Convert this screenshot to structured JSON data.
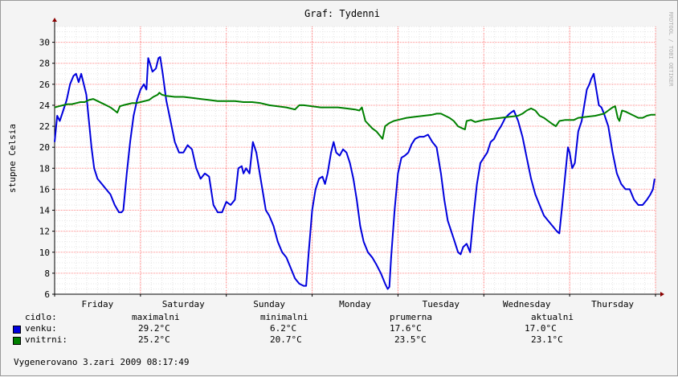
{
  "chart_data": {
    "type": "line",
    "title": "Graf: Tydenni",
    "ylabel": "stupne Celsia",
    "watermark": "RRDTOOL / TOBI OETIKER",
    "ylim": [
      6,
      31.5
    ],
    "yticks": [
      6,
      8,
      10,
      12,
      14,
      16,
      18,
      20,
      22,
      24,
      26,
      28,
      30
    ],
    "xlim": [
      0,
      7.0
    ],
    "xtick_labels": [
      {
        "x": 0.5,
        "label": "Friday"
      },
      {
        "x": 1.5,
        "label": "Saturday"
      },
      {
        "x": 2.5,
        "label": "Sunday"
      },
      {
        "x": 3.5,
        "label": "Monday"
      },
      {
        "x": 4.5,
        "label": "Tuesday"
      },
      {
        "x": 5.5,
        "label": "Wednesday"
      },
      {
        "x": 6.5,
        "label": "Thursday"
      }
    ],
    "grid": true,
    "series": [
      {
        "name": "venku",
        "color": "#0000dd",
        "points": [
          [
            0.0,
            20.5
          ],
          [
            0.03,
            23.0
          ],
          [
            0.06,
            22.5
          ],
          [
            0.1,
            23.5
          ],
          [
            0.14,
            24.5
          ],
          [
            0.18,
            26.0
          ],
          [
            0.22,
            26.8
          ],
          [
            0.25,
            27.0
          ],
          [
            0.28,
            26.2
          ],
          [
            0.31,
            27.0
          ],
          [
            0.34,
            26.0
          ],
          [
            0.37,
            25.0
          ],
          [
            0.4,
            22.5
          ],
          [
            0.43,
            20.0
          ],
          [
            0.46,
            18.0
          ],
          [
            0.5,
            17.0
          ],
          [
            0.55,
            16.5
          ],
          [
            0.6,
            16.0
          ],
          [
            0.65,
            15.5
          ],
          [
            0.7,
            14.5
          ],
          [
            0.75,
            13.8
          ],
          [
            0.78,
            13.8
          ],
          [
            0.8,
            14.0
          ],
          [
            0.84,
            17.5
          ],
          [
            0.88,
            20.5
          ],
          [
            0.92,
            23.0
          ],
          [
            0.96,
            24.5
          ],
          [
            1.0,
            25.5
          ],
          [
            1.04,
            26.0
          ],
          [
            1.07,
            25.5
          ],
          [
            1.09,
            28.5
          ],
          [
            1.11,
            28.0
          ],
          [
            1.14,
            27.2
          ],
          [
            1.18,
            27.5
          ],
          [
            1.21,
            28.5
          ],
          [
            1.23,
            28.6
          ],
          [
            1.26,
            27.0
          ],
          [
            1.3,
            24.5
          ],
          [
            1.35,
            22.5
          ],
          [
            1.4,
            20.5
          ],
          [
            1.45,
            19.5
          ],
          [
            1.5,
            19.5
          ],
          [
            1.55,
            20.2
          ],
          [
            1.6,
            19.8
          ],
          [
            1.65,
            18.0
          ],
          [
            1.7,
            17.0
          ],
          [
            1.75,
            17.5
          ],
          [
            1.8,
            17.2
          ],
          [
            1.85,
            14.5
          ],
          [
            1.9,
            13.8
          ],
          [
            1.95,
            13.8
          ],
          [
            2.0,
            14.8
          ],
          [
            2.05,
            14.5
          ],
          [
            2.1,
            15.0
          ],
          [
            2.14,
            18.0
          ],
          [
            2.18,
            18.2
          ],
          [
            2.2,
            17.5
          ],
          [
            2.23,
            18.0
          ],
          [
            2.27,
            17.5
          ],
          [
            2.31,
            20.5
          ],
          [
            2.35,
            19.5
          ],
          [
            2.38,
            18.0
          ],
          [
            2.42,
            16.0
          ],
          [
            2.46,
            14.0
          ],
          [
            2.5,
            13.5
          ],
          [
            2.55,
            12.5
          ],
          [
            2.6,
            11.0
          ],
          [
            2.65,
            10.0
          ],
          [
            2.7,
            9.5
          ],
          [
            2.75,
            8.5
          ],
          [
            2.8,
            7.5
          ],
          [
            2.85,
            7.0
          ],
          [
            2.9,
            6.8
          ],
          [
            2.93,
            6.8
          ],
          [
            2.96,
            10.0
          ],
          [
            3.0,
            14.0
          ],
          [
            3.04,
            16.0
          ],
          [
            3.08,
            17.0
          ],
          [
            3.12,
            17.2
          ],
          [
            3.15,
            16.5
          ],
          [
            3.18,
            17.5
          ],
          [
            3.22,
            19.5
          ],
          [
            3.25,
            20.5
          ],
          [
            3.28,
            19.5
          ],
          [
            3.32,
            19.2
          ],
          [
            3.36,
            19.8
          ],
          [
            3.4,
            19.5
          ],
          [
            3.44,
            18.5
          ],
          [
            3.48,
            17.0
          ],
          [
            3.52,
            15.0
          ],
          [
            3.56,
            12.5
          ],
          [
            3.6,
            11.0
          ],
          [
            3.65,
            10.0
          ],
          [
            3.7,
            9.5
          ],
          [
            3.75,
            8.8
          ],
          [
            3.8,
            8.0
          ],
          [
            3.85,
            7.0
          ],
          [
            3.88,
            6.5
          ],
          [
            3.9,
            6.7
          ],
          [
            3.92,
            9.5
          ],
          [
            3.96,
            14.0
          ],
          [
            4.0,
            17.5
          ],
          [
            4.04,
            19.0
          ],
          [
            4.08,
            19.2
          ],
          [
            4.12,
            19.5
          ],
          [
            4.16,
            20.3
          ],
          [
            4.2,
            20.8
          ],
          [
            4.25,
            21.0
          ],
          [
            4.3,
            21.0
          ],
          [
            4.35,
            21.2
          ],
          [
            4.4,
            20.5
          ],
          [
            4.45,
            20.0
          ],
          [
            4.5,
            17.5
          ],
          [
            4.54,
            15.0
          ],
          [
            4.58,
            13.0
          ],
          [
            4.62,
            12.0
          ],
          [
            4.66,
            11.0
          ],
          [
            4.7,
            10.0
          ],
          [
            4.73,
            9.8
          ],
          [
            4.76,
            10.5
          ],
          [
            4.8,
            10.8
          ],
          [
            4.84,
            10.0
          ],
          [
            4.88,
            13.5
          ],
          [
            4.92,
            16.5
          ],
          [
            4.96,
            18.5
          ],
          [
            5.0,
            19.0
          ],
          [
            5.04,
            19.5
          ],
          [
            5.08,
            20.5
          ],
          [
            5.12,
            20.8
          ],
          [
            5.16,
            21.5
          ],
          [
            5.2,
            22.0
          ],
          [
            5.25,
            22.8
          ],
          [
            5.3,
            23.2
          ],
          [
            5.35,
            23.5
          ],
          [
            5.4,
            22.5
          ],
          [
            5.45,
            21.0
          ],
          [
            5.5,
            19.0
          ],
          [
            5.55,
            17.0
          ],
          [
            5.6,
            15.5
          ],
          [
            5.65,
            14.5
          ],
          [
            5.7,
            13.5
          ],
          [
            5.75,
            13.0
          ],
          [
            5.8,
            12.5
          ],
          [
            5.85,
            12.0
          ],
          [
            5.88,
            11.8
          ],
          [
            5.92,
            15.0
          ],
          [
            5.95,
            17.5
          ],
          [
            5.98,
            20.0
          ],
          [
            6.0,
            19.5
          ],
          [
            6.03,
            18.0
          ],
          [
            6.06,
            18.5
          ],
          [
            6.1,
            21.5
          ],
          [
            6.14,
            22.5
          ],
          [
            6.18,
            24.5
          ],
          [
            6.2,
            25.5
          ],
          [
            6.23,
            26.0
          ],
          [
            6.25,
            26.5
          ],
          [
            6.28,
            27.0
          ],
          [
            6.31,
            25.5
          ],
          [
            6.34,
            24.0
          ],
          [
            6.37,
            23.8
          ],
          [
            6.4,
            23.2
          ],
          [
            6.45,
            22.0
          ],
          [
            6.5,
            19.5
          ],
          [
            6.55,
            17.5
          ],
          [
            6.6,
            16.5
          ],
          [
            6.65,
            16.0
          ],
          [
            6.7,
            16.0
          ],
          [
            6.75,
            15.0
          ],
          [
            6.8,
            14.5
          ],
          [
            6.85,
            14.5
          ],
          [
            6.9,
            15.0
          ],
          [
            6.94,
            15.5
          ],
          [
            6.97,
            16.0
          ],
          [
            6.99,
            17.0
          ]
        ]
      },
      {
        "name": "vnitrni",
        "color": "#008000",
        "points": [
          [
            0.0,
            23.8
          ],
          [
            0.05,
            23.9
          ],
          [
            0.1,
            24.0
          ],
          [
            0.15,
            24.1
          ],
          [
            0.2,
            24.1
          ],
          [
            0.25,
            24.2
          ],
          [
            0.3,
            24.3
          ],
          [
            0.35,
            24.3
          ],
          [
            0.4,
            24.5
          ],
          [
            0.45,
            24.6
          ],
          [
            0.5,
            24.4
          ],
          [
            0.55,
            24.2
          ],
          [
            0.6,
            24.0
          ],
          [
            0.65,
            23.8
          ],
          [
            0.7,
            23.5
          ],
          [
            0.73,
            23.3
          ],
          [
            0.76,
            23.9
          ],
          [
            0.8,
            24.0
          ],
          [
            0.85,
            24.1
          ],
          [
            0.9,
            24.2
          ],
          [
            0.95,
            24.2
          ],
          [
            1.0,
            24.3
          ],
          [
            1.05,
            24.4
          ],
          [
            1.1,
            24.5
          ],
          [
            1.15,
            24.8
          ],
          [
            1.2,
            25.0
          ],
          [
            1.22,
            25.2
          ],
          [
            1.25,
            25.0
          ],
          [
            1.3,
            24.9
          ],
          [
            1.4,
            24.8
          ],
          [
            1.5,
            24.8
          ],
          [
            1.6,
            24.7
          ],
          [
            1.7,
            24.6
          ],
          [
            1.8,
            24.5
          ],
          [
            1.9,
            24.4
          ],
          [
            2.0,
            24.4
          ],
          [
            2.1,
            24.4
          ],
          [
            2.2,
            24.3
          ],
          [
            2.3,
            24.3
          ],
          [
            2.4,
            24.2
          ],
          [
            2.5,
            24.0
          ],
          [
            2.6,
            23.9
          ],
          [
            2.7,
            23.8
          ],
          [
            2.8,
            23.6
          ],
          [
            2.85,
            24.0
          ],
          [
            2.9,
            24.0
          ],
          [
            3.0,
            23.9
          ],
          [
            3.1,
            23.8
          ],
          [
            3.2,
            23.8
          ],
          [
            3.3,
            23.8
          ],
          [
            3.4,
            23.7
          ],
          [
            3.5,
            23.6
          ],
          [
            3.55,
            23.5
          ],
          [
            3.58,
            23.8
          ],
          [
            3.62,
            22.5
          ],
          [
            3.7,
            21.8
          ],
          [
            3.75,
            21.5
          ],
          [
            3.8,
            21.0
          ],
          [
            3.82,
            20.8
          ],
          [
            3.85,
            22.0
          ],
          [
            3.9,
            22.3
          ],
          [
            3.95,
            22.5
          ],
          [
            4.0,
            22.6
          ],
          [
            4.1,
            22.8
          ],
          [
            4.2,
            22.9
          ],
          [
            4.3,
            23.0
          ],
          [
            4.4,
            23.1
          ],
          [
            4.45,
            23.2
          ],
          [
            4.5,
            23.2
          ],
          [
            4.55,
            23.0
          ],
          [
            4.6,
            22.8
          ],
          [
            4.65,
            22.5
          ],
          [
            4.7,
            22.0
          ],
          [
            4.75,
            21.8
          ],
          [
            4.78,
            21.7
          ],
          [
            4.8,
            22.5
          ],
          [
            4.85,
            22.6
          ],
          [
            4.9,
            22.4
          ],
          [
            4.95,
            22.5
          ],
          [
            5.0,
            22.6
          ],
          [
            5.1,
            22.7
          ],
          [
            5.2,
            22.8
          ],
          [
            5.3,
            22.9
          ],
          [
            5.4,
            23.0
          ],
          [
            5.45,
            23.2
          ],
          [
            5.5,
            23.5
          ],
          [
            5.55,
            23.7
          ],
          [
            5.6,
            23.5
          ],
          [
            5.65,
            23.0
          ],
          [
            5.7,
            22.8
          ],
          [
            5.75,
            22.5
          ],
          [
            5.8,
            22.2
          ],
          [
            5.84,
            22.0
          ],
          [
            5.88,
            22.5
          ],
          [
            5.95,
            22.6
          ],
          [
            6.0,
            22.6
          ],
          [
            6.05,
            22.6
          ],
          [
            6.1,
            22.8
          ],
          [
            6.2,
            22.9
          ],
          [
            6.3,
            23.0
          ],
          [
            6.4,
            23.2
          ],
          [
            6.45,
            23.5
          ],
          [
            6.5,
            23.8
          ],
          [
            6.53,
            23.9
          ],
          [
            6.56,
            22.8
          ],
          [
            6.58,
            22.5
          ],
          [
            6.61,
            23.5
          ],
          [
            6.65,
            23.4
          ],
          [
            6.7,
            23.2
          ],
          [
            6.75,
            23.0
          ],
          [
            6.8,
            22.8
          ],
          [
            6.85,
            22.8
          ],
          [
            6.9,
            23.0
          ],
          [
            6.95,
            23.1
          ],
          [
            7.0,
            23.1
          ]
        ]
      }
    ]
  },
  "legend": {
    "header": {
      "col0": "cidlo:",
      "col1": "maximalni",
      "col2": "minimalni",
      "col3": "prumerna",
      "col4": "aktualni"
    },
    "rows": [
      {
        "name": "venku:",
        "color": "#0000dd",
        "max": "29.2°C",
        "min": "6.2°C",
        "avg": "17.6°C",
        "cur": "17.0°C"
      },
      {
        "name": "vnitrni:",
        "color": "#008000",
        "max": "25.2°C",
        "min": "20.7°C",
        "avg": "23.5°C",
        "cur": "23.1°C"
      }
    ]
  },
  "footer": "Vygenerovano 3.zari 2009 08:17:49"
}
